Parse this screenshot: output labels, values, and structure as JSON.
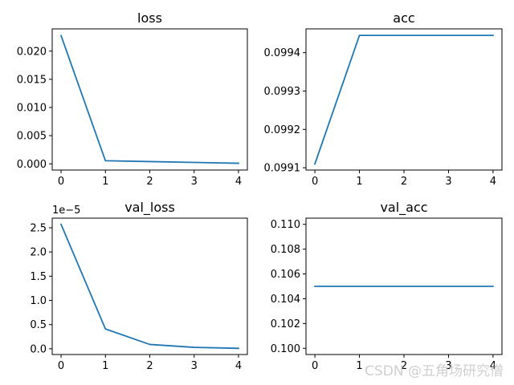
{
  "figure": {
    "watermark": "CSDN @五角场研究僧"
  },
  "colors": {
    "line": "#1f77b4",
    "axes": "#000000",
    "background": "#ffffff"
  },
  "chart_data": [
    {
      "type": "line",
      "title": "loss",
      "x": [
        0,
        1,
        2,
        3,
        4
      ],
      "series": [
        {
          "values": [
            0.02275,
            0.00055,
            0.0004,
            0.00025,
            0.0001
          ]
        }
      ],
      "xlim": [
        -0.2,
        4.2
      ],
      "ylim": [
        -0.0011,
        0.02395
      ],
      "xticks": [
        0,
        1,
        2,
        3,
        4
      ],
      "xtick_labels": [
        "0",
        "1",
        "2",
        "3",
        "4"
      ],
      "yticks": [
        0,
        0.005,
        0.01,
        0.015,
        0.02
      ],
      "ytick_labels": [
        "0.000",
        "0.005",
        "0.010",
        "0.015",
        "0.020"
      ],
      "offset_label": "",
      "grid": false
    },
    {
      "type": "line",
      "title": "acc",
      "x": [
        0,
        1,
        2,
        3,
        4
      ],
      "series": [
        {
          "values": [
            0.09911,
            0.099445,
            0.099445,
            0.099445,
            0.099445
          ]
        }
      ],
      "xlim": [
        -0.2,
        4.2
      ],
      "ylim": [
        0.099094,
        0.099462
      ],
      "xticks": [
        0,
        1,
        2,
        3,
        4
      ],
      "xtick_labels": [
        "0",
        "1",
        "2",
        "3",
        "4"
      ],
      "yticks": [
        0.0991,
        0.0992,
        0.0993,
        0.0994
      ],
      "ytick_labels": [
        "0.0991",
        "0.0992",
        "0.0993",
        "0.0994"
      ],
      "offset_label": "",
      "grid": false
    },
    {
      "type": "line",
      "title": "val_loss",
      "x": [
        0,
        1,
        2,
        3,
        4
      ],
      "series": [
        {
          "values": [
            2.57,
            0.41,
            0.09,
            0.03,
            0.01
          ]
        }
      ],
      "xlim": [
        -0.2,
        4.2
      ],
      "ylim": [
        -0.118,
        2.698
      ],
      "xticks": [
        0,
        1,
        2,
        3,
        4
      ],
      "xtick_labels": [
        "0",
        "1",
        "2",
        "3",
        "4"
      ],
      "yticks": [
        0,
        0.5,
        1.0,
        1.5,
        2.0,
        2.5
      ],
      "ytick_labels": [
        "0.0",
        "0.5",
        "1.0",
        "1.5",
        "2.0",
        "2.5"
      ],
      "offset_label": "1e−5",
      "grid": false
    },
    {
      "type": "line",
      "title": "val_acc",
      "x": [
        0,
        1,
        2,
        3,
        4
      ],
      "series": [
        {
          "values": [
            0.105,
            0.105,
            0.105,
            0.105,
            0.105
          ]
        }
      ],
      "xlim": [
        -0.2,
        4.2
      ],
      "ylim": [
        0.0995,
        0.1105
      ],
      "xticks": [
        0,
        1,
        2,
        3,
        4
      ],
      "xtick_labels": [
        "0",
        "1",
        "2",
        "3",
        "4"
      ],
      "yticks": [
        0.1,
        0.102,
        0.104,
        0.106,
        0.108,
        0.11
      ],
      "ytick_labels": [
        "0.100",
        "0.102",
        "0.104",
        "0.106",
        "0.108",
        "0.110"
      ],
      "offset_label": "",
      "grid": false
    }
  ]
}
